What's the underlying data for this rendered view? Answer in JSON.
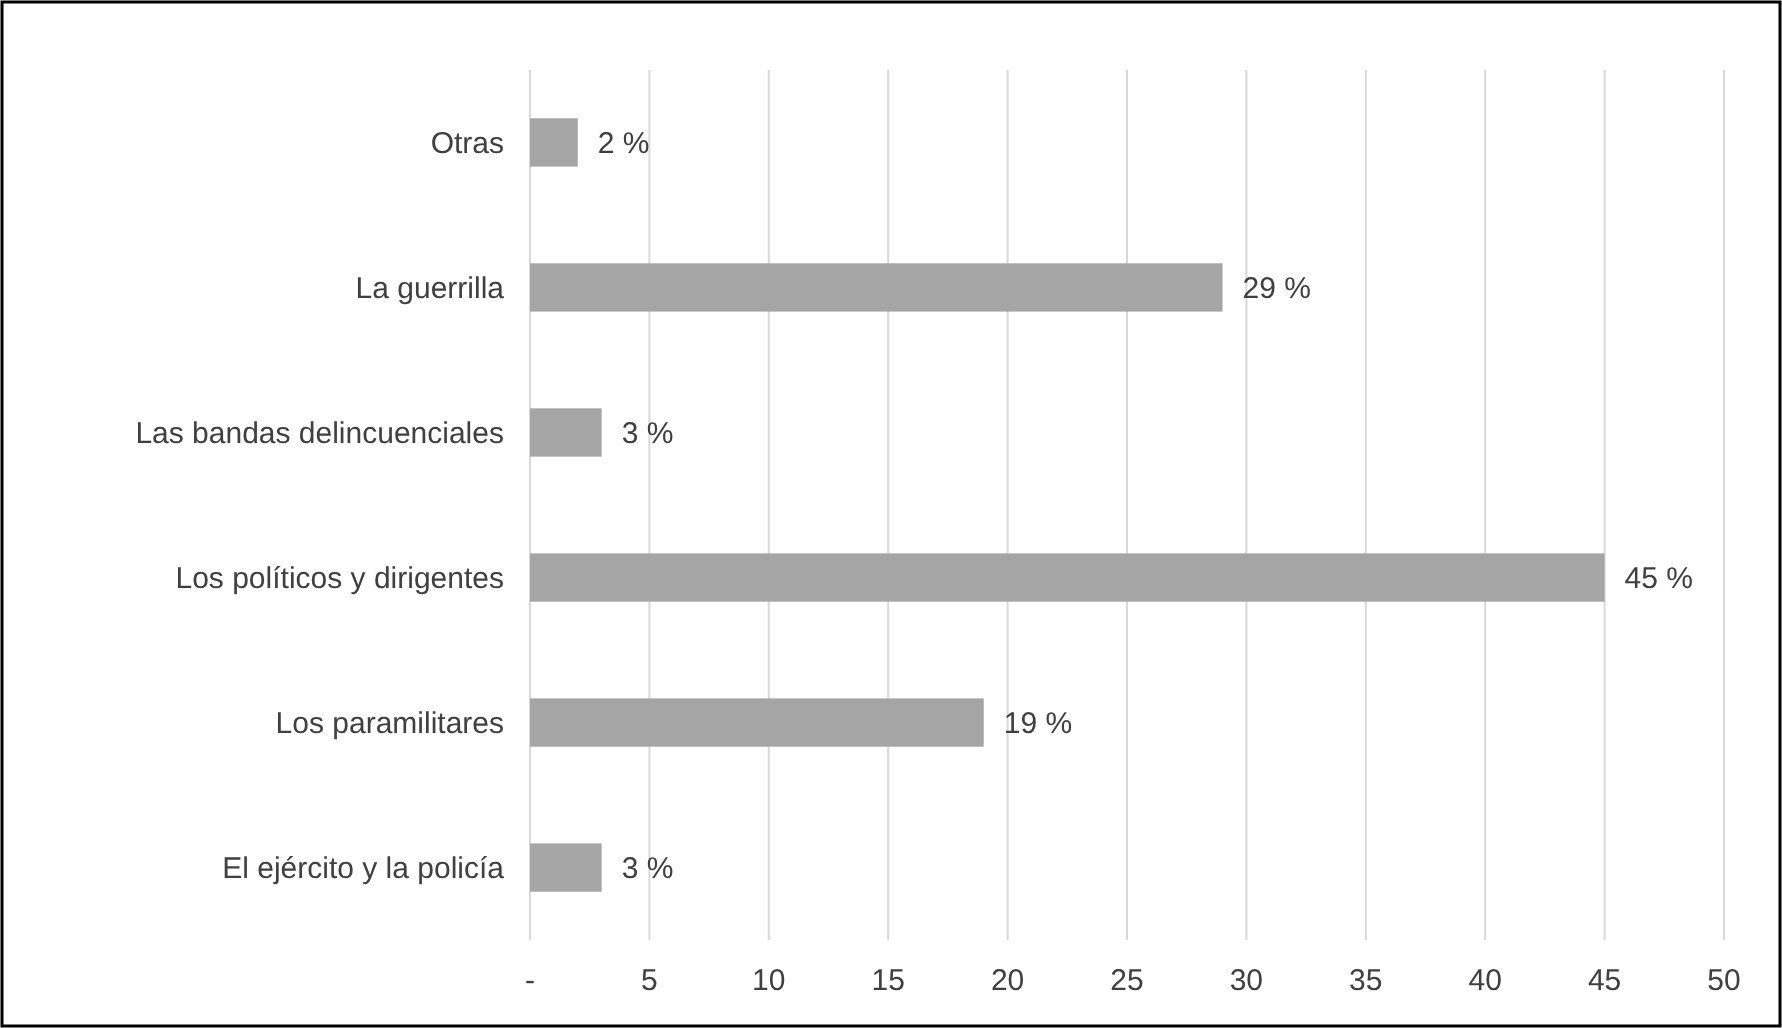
{
  "chart_data": {
    "type": "bar",
    "orientation": "horizontal",
    "categories": [
      "Otras",
      "La guerrilla",
      "Las bandas delincuenciales",
      "Los políticos y dirigentes",
      "Los paramilitares",
      "El ejército y la policía"
    ],
    "values": [
      2,
      29,
      3,
      45,
      19,
      3
    ],
    "value_labels": [
      "2 %",
      "29 %",
      "3 %",
      "45 %",
      "19 %",
      "3 %"
    ],
    "color": "#a5a5a5",
    "xlim": [
      0,
      50
    ],
    "xticks": [
      {
        "value": 0,
        "label": "-"
      },
      5,
      10,
      15,
      20,
      25,
      30,
      35,
      40,
      45,
      50
    ],
    "grid": "x"
  }
}
